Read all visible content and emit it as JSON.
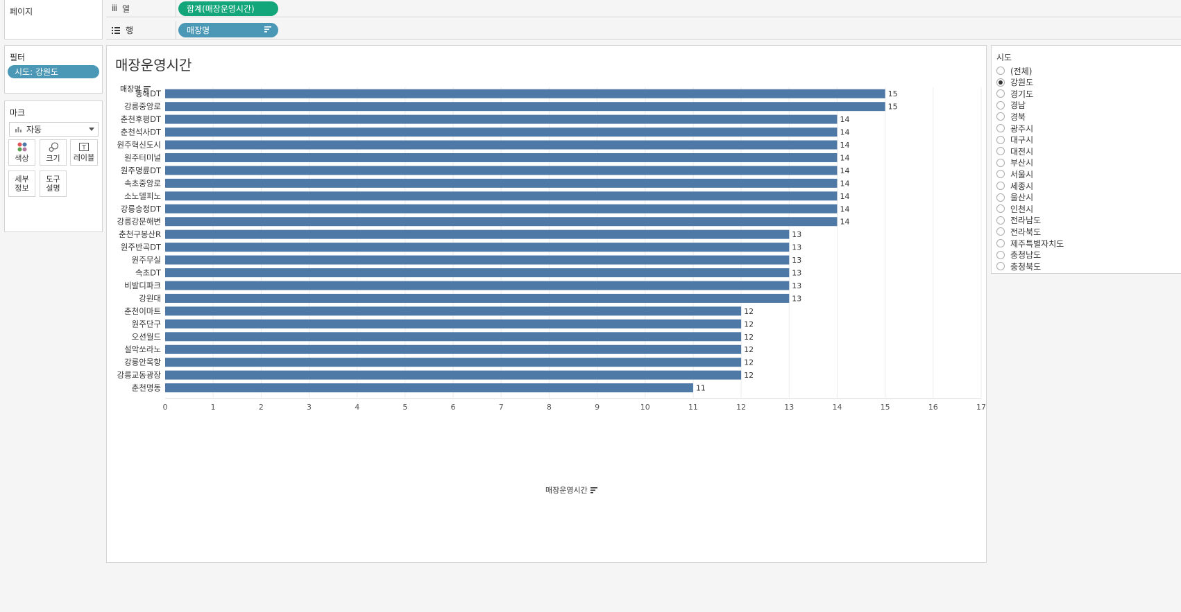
{
  "pages_panel": {
    "title": "페이지"
  },
  "shelves": {
    "columns": {
      "label": "열",
      "pill": "합계(매장운영시간)"
    },
    "rows": {
      "label": "행",
      "pill": "매장명"
    }
  },
  "filters_panel": {
    "title": "필터",
    "pill": "시도: 강원도"
  },
  "marks_panel": {
    "title": "마크",
    "type_value": "자동",
    "buttons": {
      "color": "색상",
      "size": "크기",
      "label": "레이블",
      "detail": "세부\n정보",
      "tooltip": "도구\n설명"
    }
  },
  "chart_data": {
    "type": "bar",
    "orientation": "horizontal",
    "title": "매장운영시간",
    "ylabel": "매장명",
    "xlabel": "매장운영시간",
    "xlim": [
      0,
      17
    ],
    "x_ticks": [
      0,
      1,
      2,
      3,
      4,
      5,
      6,
      7,
      8,
      9,
      10,
      11,
      12,
      13,
      14,
      15,
      16,
      17
    ],
    "grid": true,
    "bar_color": "#4e79a7",
    "categories": [
      "동해DT",
      "강릉중앙로",
      "춘천후평DT",
      "춘천석사DT",
      "원주혁신도시",
      "원주터미널",
      "원주명륜DT",
      "속초중앙로",
      "소노델피노",
      "강릉송정DT",
      "강릉강문해변",
      "춘천구봉산R",
      "원주반곡DT",
      "원주무실",
      "속초DT",
      "비발디파크",
      "강원대",
      "춘천이마트",
      "원주단구",
      "오션월드",
      "설악쏘라노",
      "강릉안목항",
      "강릉교동광장",
      "춘천명동"
    ],
    "values": [
      15,
      15,
      14,
      14,
      14,
      14,
      14,
      14,
      14,
      14,
      14,
      13,
      13,
      13,
      13,
      13,
      13,
      12,
      12,
      12,
      12,
      12,
      12,
      11
    ]
  },
  "filter_card": {
    "title": "시도",
    "options": [
      "(전체)",
      "강원도",
      "경기도",
      "경남",
      "경북",
      "광주시",
      "대구시",
      "대전시",
      "부산시",
      "서울시",
      "세종시",
      "울산시",
      "인천시",
      "전라남도",
      "전라북도",
      "제주특별자치도",
      "충청남도",
      "충청북도"
    ],
    "selected": "강원도"
  }
}
